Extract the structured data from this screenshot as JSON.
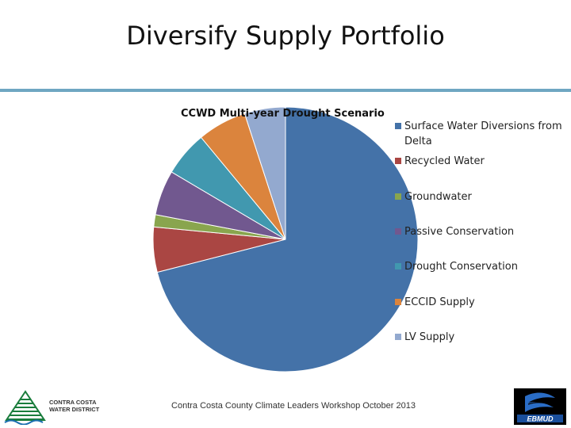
{
  "slide": {
    "title": "Diversify Supply Portfolio",
    "footer": "Contra Costa County Climate Leaders Workshop October 2013"
  },
  "logos": {
    "left": {
      "text_line1": "CONTRA COSTA",
      "text_line2": "WATER DISTRICT",
      "color": "#1a7d3c"
    },
    "right": {
      "text": "EBMUD",
      "color": "#1a4f9c"
    }
  },
  "chart_data": {
    "type": "pie",
    "title": "CCWD Multi-year Drought Scenario",
    "legend_position": "right",
    "start_angle_deg": 0,
    "direction": "clockwise",
    "slices": [
      {
        "label": "Surface Water Diversions from Delta",
        "value": 71.0,
        "color": "#4472a8"
      },
      {
        "label": "Recycled Water",
        "value": 5.5,
        "color": "#aa4643"
      },
      {
        "label": "Groundwater",
        "value": 1.5,
        "color": "#89a54e"
      },
      {
        "label": "Passive Conservation",
        "value": 5.5,
        "color": "#71588f"
      },
      {
        "label": "Drought Conservation",
        "value": 5.5,
        "color": "#4198af"
      },
      {
        "label": "ECCID Supply",
        "value": 6.0,
        "color": "#db843d"
      },
      {
        "label": "LV Supply",
        "value": 5.0,
        "color": "#93a9cf"
      }
    ]
  }
}
